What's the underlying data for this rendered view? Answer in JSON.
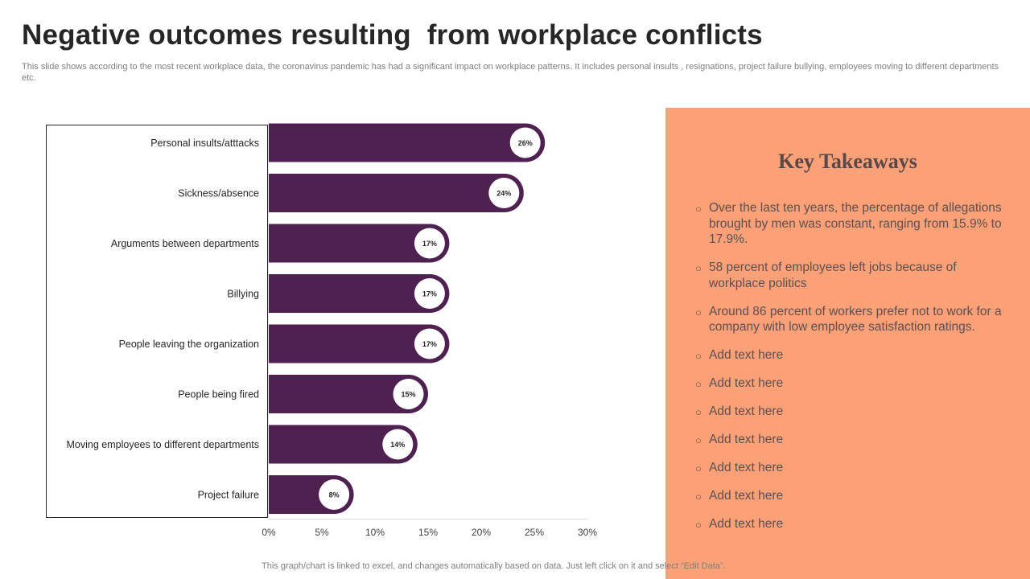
{
  "title": "Negative outcomes resulting  from workplace conflicts",
  "subtitle": "This slide shows according to the most recent workplace data, the coronavirus pandemic has had a significant impact on workplace patterns. It includes personal insults , resignations, project failure bullying, employees moving to different departments etc.",
  "colors": {
    "bar": "#4e2150",
    "panel": "#fba077",
    "label_circle": "#ffffff"
  },
  "chart_data": {
    "type": "bar",
    "orientation": "horizontal",
    "categories": [
      "Personal insults/atttacks",
      "Sickness/absence",
      "Arguments between departments",
      "Billying",
      "People leaving the organization",
      "People being fired",
      "Moving employees to different departments",
      "Project failure"
    ],
    "values": [
      26,
      24,
      17,
      17,
      17,
      15,
      14,
      8
    ],
    "data_labels": [
      "26%",
      "24%",
      "17%",
      "17%",
      "17%",
      "15%",
      "14%",
      "8%"
    ],
    "x_ticks": [
      "0%",
      "5%",
      "10%",
      "15%",
      "20%",
      "25%",
      "30%"
    ],
    "xlim": [
      0,
      30
    ],
    "xlabel": "",
    "ylabel": "",
    "grid": false
  },
  "takeaways": {
    "title": "Key Takeaways",
    "items": [
      "Over the last ten years, the percentage of allegations brought by men was constant, ranging from 15.9% to 17.9%.",
      "58 percent of employees left jobs because of workplace politics",
      "Around 86 percent of workers prefer not to work for a company with low employee satisfaction ratings.",
      "Add text here",
      "Add text here",
      "Add text here",
      "Add text here",
      "Add text here",
      "Add text here",
      "Add text here"
    ]
  },
  "footer": "This graph/chart is linked to excel,  and changes automatically based on data. Just left click on it and select “Edit Data”."
}
